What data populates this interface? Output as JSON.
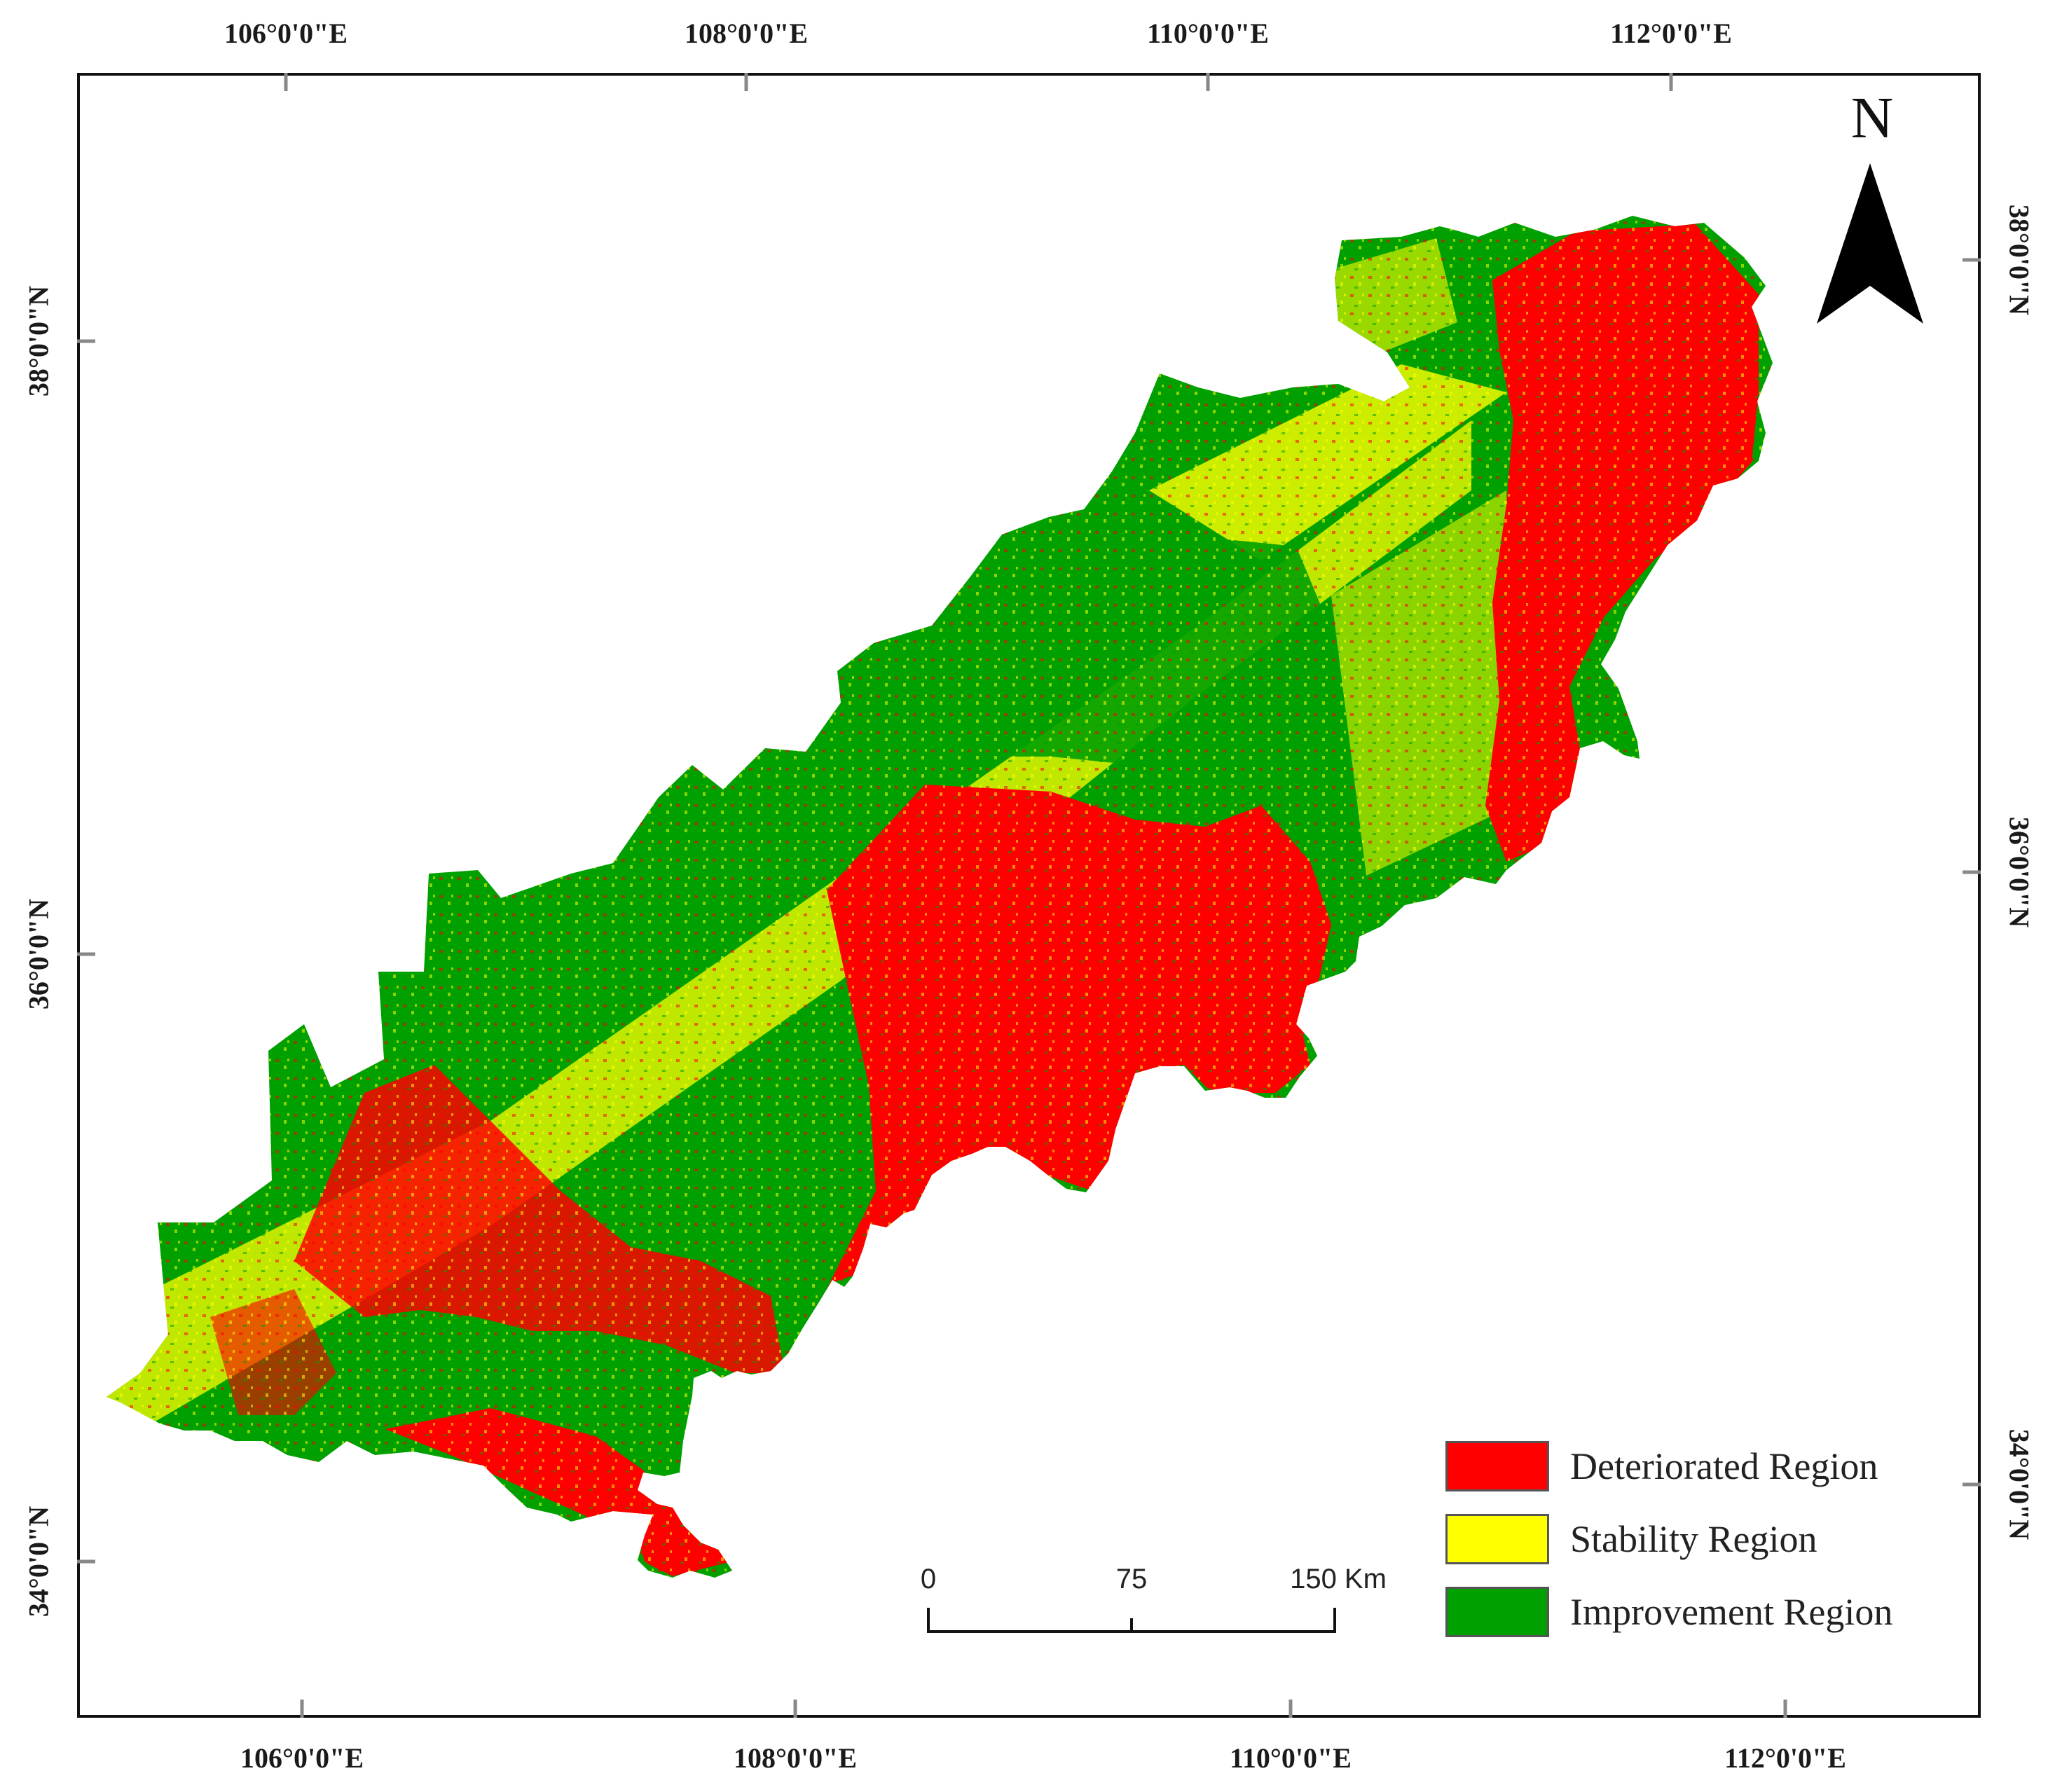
{
  "map": {
    "top_longitudes": [
      "106°0'0\"E",
      "108°0'0\"E",
      "110°0'0\"E",
      "112°0'0\"E"
    ],
    "bottom_longitudes": [
      "106°0'0\"E",
      "108°0'0\"E",
      "110°0'0\"E",
      "112°0'0\"E"
    ],
    "left_latitudes": [
      "38°0'0\"N",
      "36°0'0\"N",
      "34°0'0\"N"
    ],
    "right_latitudes": [
      "38°0'0\"N",
      "36°0'0\"N",
      "34°0'0\"N"
    ],
    "north_arrow": {
      "letter": "N",
      "icon": "north-arrow-icon"
    },
    "scale_bar": {
      "labels": [
        "0",
        "75",
        "150 Km"
      ]
    },
    "legend": [
      {
        "label": "Deteriorated  Region",
        "color": "#ff0000"
      },
      {
        "label": "Stability Region",
        "color": "#ffff00"
      },
      {
        "label": "Improvement Region",
        "color": "#00a000"
      }
    ]
  }
}
